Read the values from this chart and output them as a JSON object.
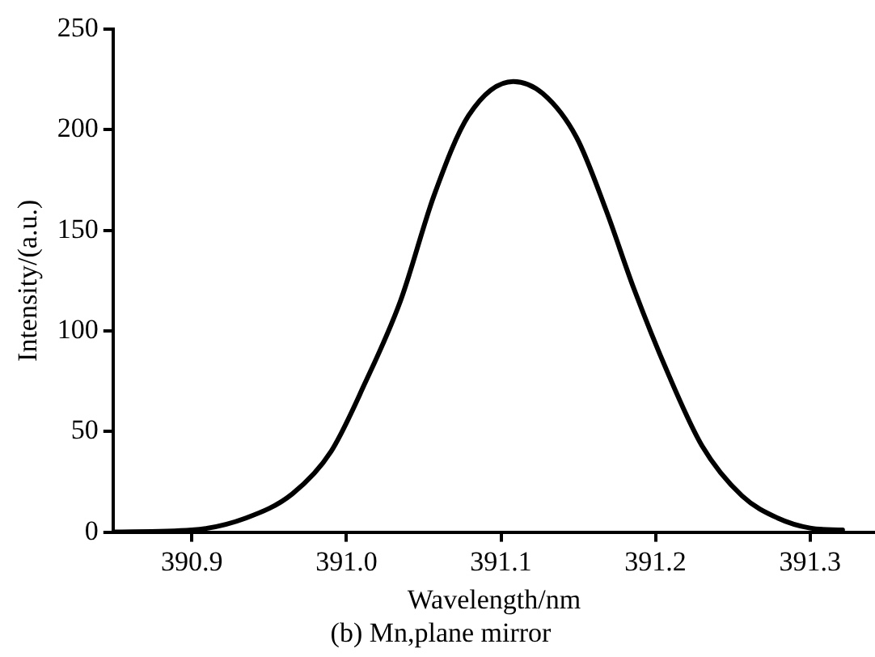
{
  "chart_data": {
    "type": "line",
    "title": "(b) Mn,plane mirror",
    "xlabel": "Wavelength/nm",
    "ylabel": "Intensity/(a.u.)",
    "x": [
      390.849,
      390.9,
      390.935,
      390.965,
      390.99,
      391.012,
      391.035,
      391.057,
      391.079,
      391.108,
      391.127,
      391.149,
      391.168,
      391.186,
      391.208,
      391.23,
      391.256,
      391.279,
      391.3,
      391.321
    ],
    "series": [
      {
        "color": "#000000",
        "values": [
          0,
          1,
          7,
          19,
          40,
          74,
          115,
          168,
          207,
          224,
          218,
          196,
          160,
          121,
          79,
          43,
          18,
          7,
          2,
          1
        ]
      }
    ],
    "xlim": [
      390.849,
      391.342
    ],
    "xticks": [
      {
        "value": 390.9,
        "label": "390.9"
      },
      {
        "value": 391.0,
        "label": "391.0"
      },
      {
        "value": 391.1,
        "label": "391.1"
      },
      {
        "value": 391.2,
        "label": "391.2"
      },
      {
        "value": 391.3,
        "label": "391.3"
      }
    ],
    "ylim": [
      0,
      250
    ],
    "yticks": [
      0,
      50,
      100,
      150,
      200,
      250
    ],
    "grid": false,
    "legend": false,
    "marker": "none",
    "line_style": "solid"
  }
}
